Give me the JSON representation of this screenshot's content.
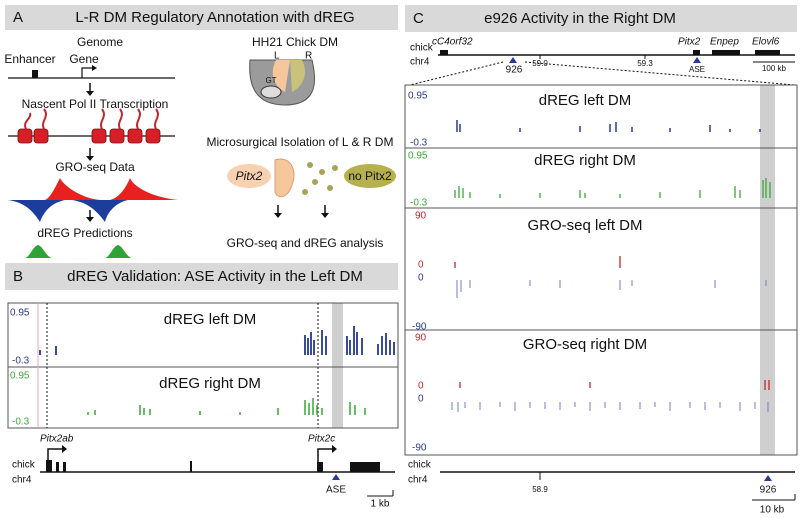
{
  "panel_a": {
    "letter": "A",
    "title": "L-R DM Regulatory Annotation with dREG",
    "genome": "Genome",
    "enhancer": "Enhancer",
    "gene": "Gene",
    "step_transcription": "Nascent Pol II Transcription",
    "step_groseq": "GRO-seq Data",
    "step_dreg": "dREG Predictions",
    "embryo_title": "HH21 Chick DM",
    "embryo_left": "L",
    "embryo_right": "R",
    "embryo_gut": "GT",
    "isolation": "Microsurgical Isolation of L & R DM",
    "left_marker": "Pitx2",
    "right_marker": "no Pitx2",
    "analysis": "GRO-seq and dREG analysis"
  },
  "panel_b": {
    "letter": "B",
    "title": "dREG Validation: ASE Activity in the Left DM",
    "tracks": [
      {
        "name": "dREG left DM",
        "ymax": 0.95,
        "ymin": -0.3
      },
      {
        "name": "dREG right DM",
        "ymax": 0.95,
        "ymin": -0.3
      }
    ],
    "genes": [
      "Pitx2ab",
      "Pitx2c"
    ],
    "species": "chick",
    "chromosome": "chr4",
    "element": "ASE",
    "scale": "1 kb"
  },
  "panel_c": {
    "letter": "C",
    "title": "e926 Activity in the Right DM",
    "overview": {
      "species": "chick",
      "chromosome": "chr4",
      "genes": [
        "cC4orf32",
        "Pitx2",
        "Enpep",
        "Elovl6"
      ],
      "positions": [
        "59.0",
        "59.3"
      ],
      "enhancer": "926",
      "element": "ASE",
      "scale": "100 kb"
    },
    "tracks": [
      {
        "name": "dREG left DM",
        "ymax": 0.95,
        "ymin": -0.3
      },
      {
        "name": "dREG right DM",
        "ymax": 0.95,
        "ymin": -0.3
      },
      {
        "name": "GRO-seq left DM",
        "plus_max": 90,
        "plus_min": 0,
        "minus_max": 0,
        "minus_min": -90
      },
      {
        "name": "GRO-seq right DM",
        "plus_max": 90,
        "plus_min": 0,
        "minus_max": 0,
        "minus_min": -90
      }
    ],
    "zoom": {
      "species": "chick",
      "chromosome": "chr4",
      "position": "58.9",
      "enhancer": "926",
      "scale": "10 kb"
    }
  }
}
